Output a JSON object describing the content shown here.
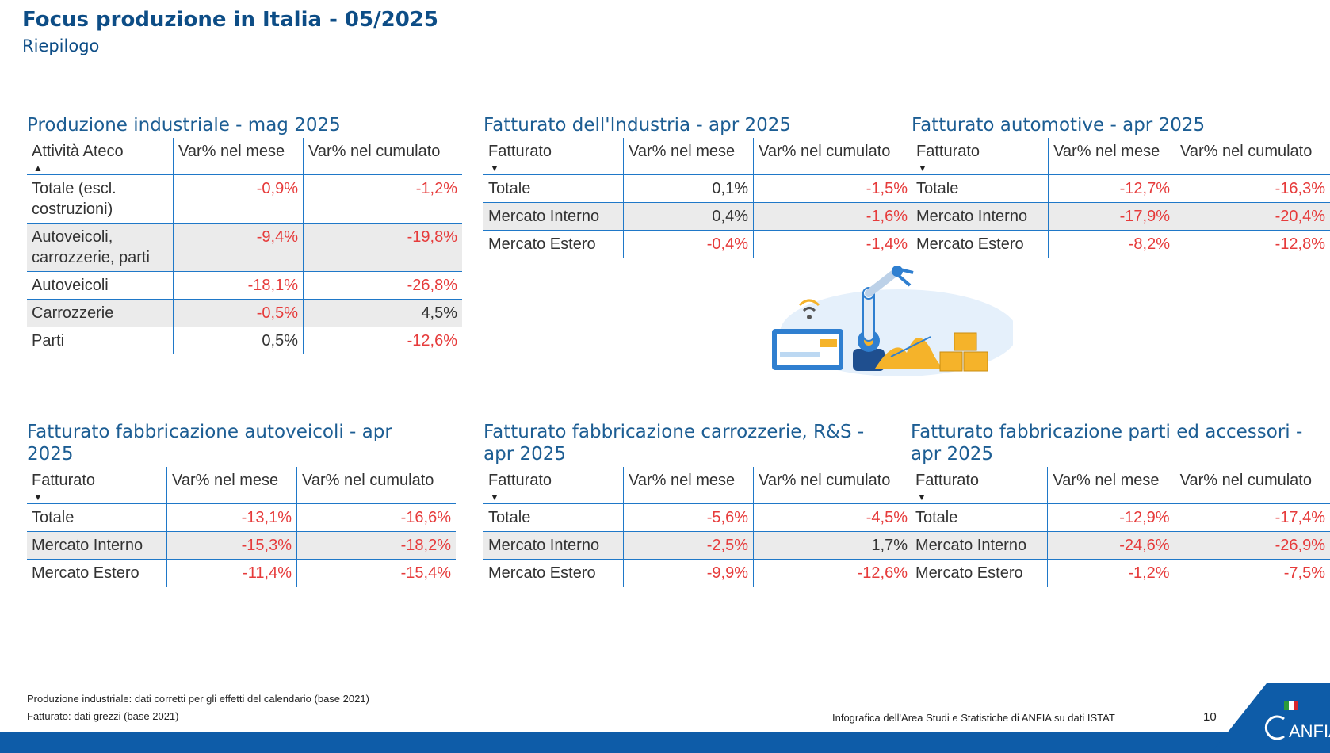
{
  "header": {
    "title": "Focus produzione in Italia - 05/2025",
    "subtitle": "Riepilogo"
  },
  "panels": [
    {
      "title": "Produzione industriale - mag 2025",
      "headers": [
        "Attività Ateco",
        "Var% nel mese",
        "Var% nel cumulato"
      ],
      "rows": [
        [
          "Totale (escl. costruzioni)",
          "-0,9%",
          "-1,2%"
        ],
        [
          "Autoveicoli, carrozzerie, parti",
          "-9,4%",
          "-19,8%"
        ],
        [
          "Autoveicoli",
          "-18,1%",
          "-26,8%"
        ],
        [
          "Carrozzerie",
          "-0,5%",
          "4,5%"
        ],
        [
          "Parti",
          "0,5%",
          "-12,6%"
        ]
      ]
    },
    {
      "title": "Fatturato dell'Industria - apr 2025",
      "headers": [
        "Fatturato",
        "Var% nel mese",
        "Var% nel cumulato"
      ],
      "rows": [
        [
          "Totale",
          "0,1%",
          "-1,5%"
        ],
        [
          "Mercato Interno",
          "0,4%",
          "-1,6%"
        ],
        [
          "Mercato Estero",
          "-0,4%",
          "-1,4%"
        ]
      ]
    },
    {
      "title": "Fatturato automotive - apr 2025",
      "headers": [
        "Fatturato",
        "Var% nel mese",
        "Var% nel cumulato"
      ],
      "rows": [
        [
          "Totale",
          "-12,7%",
          "-16,3%"
        ],
        [
          "Mercato Interno",
          "-17,9%",
          "-20,4%"
        ],
        [
          "Mercato Estero",
          "-8,2%",
          "-12,8%"
        ]
      ]
    },
    {
      "title": "Fatturato fabbricazione autoveicoli - apr 2025",
      "headers": [
        "Fatturato",
        "Var% nel mese",
        "Var% nel cumulato"
      ],
      "rows": [
        [
          "Totale",
          "-13,1%",
          "-16,6%"
        ],
        [
          "Mercato Interno",
          "-15,3%",
          "-18,2%"
        ],
        [
          "Mercato Estero",
          "-11,4%",
          "-15,4%"
        ]
      ]
    },
    {
      "title": "Fatturato fabbricazione carrozzerie, R&S - apr 2025",
      "headers": [
        "Fatturato",
        "Var% nel mese",
        "Var% nel cumulato"
      ],
      "rows": [
        [
          "Totale",
          "-5,6%",
          "-4,5%"
        ],
        [
          "Mercato Interno",
          "-2,5%",
          "1,7%"
        ],
        [
          "Mercato Estero",
          "-9,9%",
          "-12,6%"
        ]
      ]
    },
    {
      "title": "Fatturato fabbricazione parti ed accessori - apr 2025",
      "headers": [
        "Fatturato",
        "Var% nel mese",
        "Var% nel cumulato"
      ],
      "rows": [
        [
          "Totale",
          "-12,9%",
          "-17,4%"
        ],
        [
          "Mercato Interno",
          "-24,6%",
          "-26,9%"
        ],
        [
          "Mercato Estero",
          "-1,2%",
          "-7,5%"
        ]
      ]
    }
  ],
  "footer": {
    "note1": "Produzione industriale: dati corretti per gli effetti del calendario (base 2021)",
    "note2": "Fatturato: dati grezzi (base 2021)",
    "credit": "Infografica dell'Area Studi e Statistiche di ANFIA su dati ISTAT",
    "page": "10",
    "logo": "ANFIA"
  },
  "colors": {
    "title": "#0d4d86",
    "negative": "#e63b3b",
    "rule": "#1f78c8",
    "bar": "#0e5ca8"
  }
}
